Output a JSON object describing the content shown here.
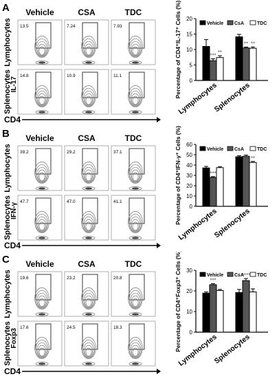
{
  "colors": {
    "Vehicle": "#000000",
    "CsA": "#555555",
    "TDC": "#ffffff",
    "contour": "#777777"
  },
  "panels": [
    {
      "letter": "A",
      "groups": [
        "Vehicle",
        "CSA",
        "TDC"
      ],
      "rows": [
        "Lymphocytes",
        "Splenocytes"
      ],
      "yMarker": "IL-17",
      "xMarker": "CD4",
      "gates": [
        [
          "13.5",
          "7.24",
          "7.93"
        ],
        [
          "14.8",
          "10.9",
          "11.1"
        ]
      ]
    },
    {
      "letter": "B",
      "groups": [
        "Vehicle",
        "CSA",
        "TDC"
      ],
      "rows": [
        "Lymphocytes",
        "Splenocytes"
      ],
      "yMarker": "IFN-γ",
      "xMarker": "CD4",
      "gates": [
        [
          "39.2",
          "29.2",
          "37.1"
        ],
        [
          "47.7",
          "47.0",
          "41.1"
        ]
      ]
    },
    {
      "letter": "C",
      "groups": [
        "Vehicle",
        "CSA",
        "TDC"
      ],
      "rows": [
        "Lymphocytes",
        "Splenocytes"
      ],
      "yMarker": "Foxp3",
      "xMarker": "CD4",
      "gates": [
        [
          "19.6",
          "23.2",
          "20.8"
        ],
        [
          "17.6",
          "24.5",
          "18.3"
        ]
      ]
    }
  ],
  "chart_data": [
    {
      "type": "bar",
      "categories": [
        "Lymphocytes",
        "Splenocytes"
      ],
      "series": [
        {
          "name": "Vehicle",
          "values": [
            11.0,
            14.1
          ],
          "errors": [
            2.2,
            0.8
          ]
        },
        {
          "name": "CsA",
          "values": [
            6.4,
            10.5
          ],
          "errors": [
            0.6,
            0.3
          ]
        },
        {
          "name": "TDC",
          "values": [
            7.4,
            10.4
          ],
          "errors": [
            0.6,
            0.4
          ]
        }
      ],
      "significance": [
        [
          "",
          "***",
          "**"
        ],
        [
          "",
          "**",
          "**"
        ]
      ],
      "ylabel": "Percentage of CD4⁺IL-17⁺ Cells (%)",
      "ylim": [
        0,
        20
      ],
      "yticks": [
        "0",
        "5",
        "10",
        "15",
        "20"
      ],
      "legend": "top-right",
      "grid": false
    },
    {
      "type": "bar",
      "categories": [
        "Lymphocytes",
        "Splenocytes"
      ],
      "series": [
        {
          "name": "Vehicle",
          "values": [
            37.2,
            48.0
          ],
          "errors": [
            1.5,
            1.0
          ]
        },
        {
          "name": "CsA",
          "values": [
            28.0,
            48.5
          ],
          "errors": [
            0.8,
            1.2
          ]
        },
        {
          "name": "TDC",
          "values": [
            37.5,
            42.5
          ],
          "errors": [
            1.0,
            1.0
          ]
        }
      ],
      "significance": [
        [
          "",
          "***",
          ""
        ],
        [
          "",
          "",
          "**"
        ]
      ],
      "ylabel": "Percentage of CD4⁺IFN-γ⁺ Cells (%)",
      "ylim": [
        0,
        60
      ],
      "yticks": [
        "0",
        "10",
        "20",
        "30",
        "40",
        "50",
        "60"
      ],
      "legend": "top-right",
      "grid": false
    },
    {
      "type": "bar",
      "categories": [
        "Lymphocytes",
        "Splenocytes"
      ],
      "series": [
        {
          "name": "Vehicle",
          "values": [
            18.9,
            19.2
          ],
          "errors": [
            0.6,
            1.5
          ]
        },
        {
          "name": "CsA",
          "values": [
            23.0,
            25.0
          ],
          "errors": [
            0.5,
            1.0
          ]
        },
        {
          "name": "TDC",
          "values": [
            20.2,
            19.5
          ],
          "errors": [
            0.5,
            1.5
          ]
        }
      ],
      "significance": [
        [
          "",
          "***",
          ""
        ],
        [
          "",
          "****",
          ""
        ]
      ],
      "ylabel": "Percentage of CD4⁺Foxp3⁺ Cells (%)",
      "ylim": [
        0,
        30
      ],
      "yticks": [
        "0",
        "10",
        "20",
        "30"
      ],
      "legend": "top-right",
      "grid": false
    }
  ]
}
